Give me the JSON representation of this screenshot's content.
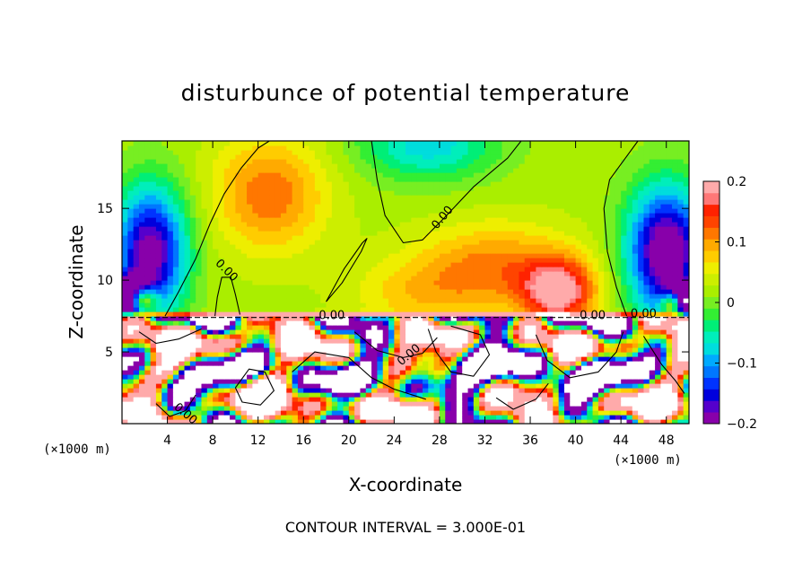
{
  "chart_data": {
    "type": "heatmap",
    "title": "disturbunce of potential temperature",
    "xlabel": "X-coordinate",
    "ylabel": "Z-coordinate",
    "x_unit_left": "(×1000 m)",
    "x_unit_right": "(×1000 m)",
    "xlim": [
      0,
      50
    ],
    "ylim": [
      0,
      19.7
    ],
    "xticks": [
      4,
      8,
      12,
      16,
      20,
      24,
      28,
      32,
      36,
      40,
      44,
      48
    ],
    "xtick_labels": [
      "4",
      "8",
      "12",
      "16",
      "20",
      "24",
      "28",
      "32",
      "36",
      "40",
      "44",
      "48"
    ],
    "yticks": [
      5,
      10,
      15
    ],
    "ytick_labels": [
      "5",
      "10",
      "15"
    ],
    "colorbar": {
      "range": [
        -0.2,
        0.2
      ],
      "ticks": [
        0.2,
        0.1,
        0,
        -0.1,
        -0.2
      ],
      "tick_labels": [
        "0.2",
        "0.1",
        "0",
        "−0.1",
        "−0.2"
      ],
      "colors": [
        "#8800aa",
        "#5500cc",
        "#0000dd",
        "#0033ff",
        "#0077ff",
        "#00aaff",
        "#00dddd",
        "#00eebb",
        "#00ee77",
        "#33ee33",
        "#77ee22",
        "#aaee00",
        "#ccee00",
        "#eeee00",
        "#ffcc00",
        "#ffaa00",
        "#ff7700",
        "#ff4400",
        "#ff2200",
        "#ff7777",
        "#ffaaaa"
      ]
    },
    "contour_labels": [
      {
        "text": "0.00",
        "x": 9.0,
        "y": 10.5,
        "rotate": 45
      },
      {
        "text": "0.00",
        "x": 18.5,
        "y": 7.3,
        "rotate": 0
      },
      {
        "text": "0.00",
        "x": 28.5,
        "y": 14.2,
        "rotate": -50
      },
      {
        "text": "0.00",
        "x": 25.5,
        "y": 4.6,
        "rotate": -40
      },
      {
        "text": "0.00",
        "x": 41.5,
        "y": 7.3,
        "rotate": 0
      },
      {
        "text": "0.00",
        "x": 46.0,
        "y": 7.4,
        "rotate": 0
      },
      {
        "text": "0.00",
        "x": 5.4,
        "y": 0.5,
        "rotate": 40
      }
    ],
    "interface_height": 7.4,
    "features": {
      "lower_layer": "turbulent mixed region below z=7.4 with values saturating beyond ±0.2",
      "upper_layer": "smooth field near 0 with positive maximum near x=38, z=9 and negative minima near x=3 and x=47 at z=10–14"
    },
    "contour_interval_text": "CONTOUR INTERVAL = 3.000E-01"
  }
}
